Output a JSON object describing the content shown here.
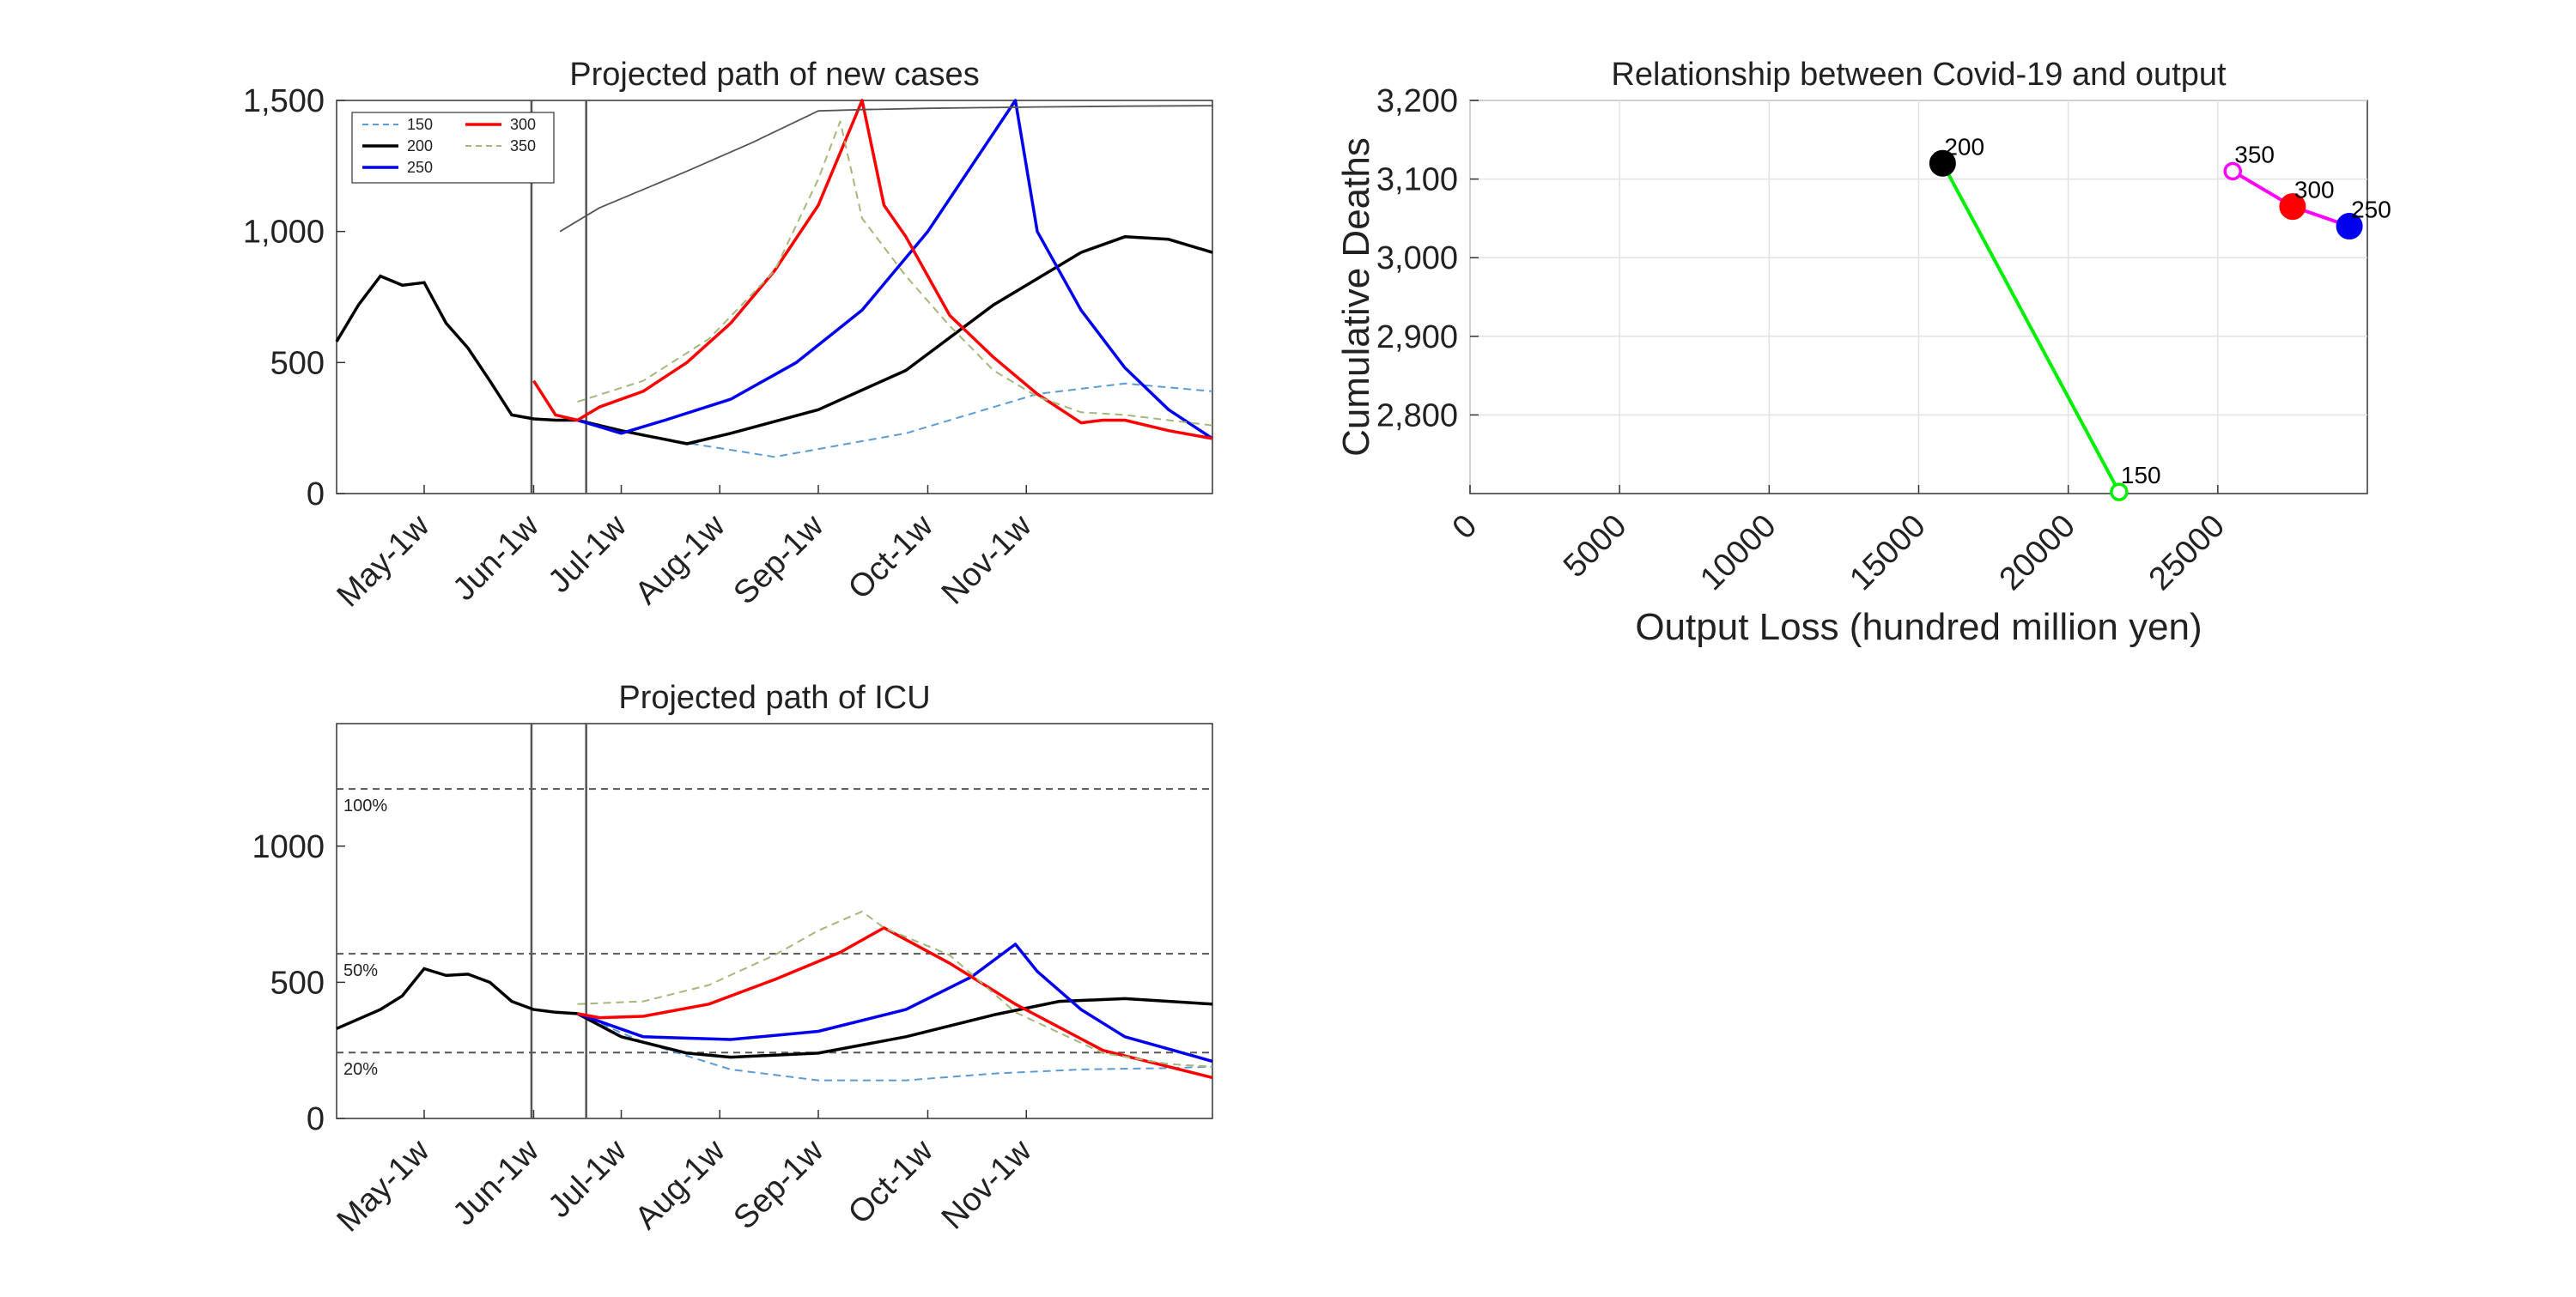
{
  "colors": {
    "s150": "#5b9bd5",
    "s200": "#000000",
    "s250": "#0000ee",
    "s300": "#ff0000",
    "s350": "#a3b87a",
    "green": "#00ee00",
    "magenta": "#ff00ff",
    "grey": "#555555"
  },
  "chart_data": [
    {
      "type": "line",
      "title": "Projected path of new cases",
      "ylim": [
        0,
        1500
      ],
      "yticks": [
        "0",
        "500",
        "1,000",
        "1,500"
      ],
      "ytick_values": [
        0,
        500,
        1000,
        1500
      ],
      "xtick_labels": [
        "May-1w",
        "Jun-1w",
        "Jul-1w",
        "Aug-1w",
        "Sep-1w",
        "Oct-1w",
        "Nov-1w"
      ],
      "xtick_weeks": [
        4,
        9,
        13,
        17.5,
        22,
        27,
        31.5
      ],
      "xlim": [
        0,
        40
      ],
      "vlines": [
        8.9,
        11.4
      ],
      "legend": [
        "150",
        "300",
        "200",
        "350",
        "250"
      ],
      "legend_position": "top-left",
      "history": {
        "x": [
          0,
          1,
          2,
          3,
          4,
          5,
          6,
          7,
          8,
          9,
          10,
          11
        ],
        "y": [
          580,
          720,
          830,
          795,
          805,
          650,
          555,
          430,
          300,
          285,
          280,
          280
        ]
      },
      "series": [
        {
          "name": "150",
          "style": "dashed",
          "x": [
            11,
            14,
            20,
            26,
            32,
            36,
            40
          ],
          "y": [
            280,
            220,
            140,
            230,
            380,
            420,
            390
          ]
        },
        {
          "name": "200",
          "style": "solid",
          "x": [
            11,
            13,
            16,
            18,
            22,
            26,
            30,
            34,
            36,
            38,
            40
          ],
          "y": [
            280,
            240,
            190,
            230,
            320,
            470,
            720,
            920,
            980,
            970,
            920
          ]
        },
        {
          "name": "250",
          "style": "solid",
          "x": [
            11,
            13,
            15,
            18,
            21,
            24,
            27,
            31,
            32,
            34,
            36,
            38,
            40
          ],
          "y": [
            280,
            230,
            280,
            360,
            500,
            700,
            1000,
            1500,
            1000,
            700,
            480,
            320,
            210
          ]
        },
        {
          "name": "300",
          "style": "solid",
          "x": [
            9,
            10,
            11,
            12,
            14,
            16,
            18,
            20,
            22,
            24,
            25,
            26,
            28,
            30,
            32,
            34,
            35,
            36,
            38,
            40
          ],
          "y": [
            430,
            300,
            280,
            330,
            390,
            500,
            650,
            850,
            1100,
            1500,
            1100,
            980,
            680,
            520,
            380,
            270,
            280,
            280,
            240,
            210
          ]
        },
        {
          "name": "350",
          "style": "dashed",
          "x": [
            11,
            14,
            17,
            20,
            22,
            23,
            24,
            26,
            28,
            30,
            32,
            34,
            36,
            38,
            40
          ],
          "y": [
            350,
            430,
            590,
            850,
            1200,
            1420,
            1050,
            830,
            640,
            470,
            370,
            310,
            300,
            280,
            260
          ]
        },
        {
          "name": "",
          "style": "thin",
          "x": [
            10.2,
            12,
            14,
            16,
            19,
            22,
            24,
            27,
            32,
            36,
            40
          ],
          "y": [
            1000,
            1090,
            1160,
            1230,
            1340,
            1460,
            1465,
            1470,
            1475,
            1478,
            1480
          ]
        }
      ]
    },
    {
      "type": "scatter",
      "title": "Relationship between Covid-19 and output",
      "xlabel": "Output Loss (hundred million yen)",
      "ylabel": "Cumulative Deaths",
      "xlim": [
        0,
        30000
      ],
      "ylim": [
        2700,
        3200
      ],
      "xticks": [
        "0",
        "5000",
        "10000",
        "15000",
        "20000",
        "25000"
      ],
      "xtick_values": [
        0,
        5000,
        10000,
        15000,
        20000,
        25000
      ],
      "yticks": [
        "2,800",
        "2,900",
        "3,000",
        "3,100",
        "3,200"
      ],
      "ytick_values": [
        2800,
        2900,
        3000,
        3100,
        3200
      ],
      "grid": true,
      "points": [
        {
          "label": "200",
          "x": 15800,
          "y": 3120,
          "color": "#000000",
          "filled": true
        },
        {
          "label": "150",
          "x": 21700,
          "y": 2702,
          "color": "#00ee00",
          "filled": false
        },
        {
          "label": "350",
          "x": 25500,
          "y": 3110,
          "color": "#ff00ff",
          "filled": false
        },
        {
          "label": "300",
          "x": 27500,
          "y": 3065,
          "color": "#ff0000",
          "filled": true
        },
        {
          "label": "250",
          "x": 29400,
          "y": 3040,
          "color": "#0000ee",
          "filled": true
        }
      ],
      "segments": [
        {
          "from": "200",
          "to": "150",
          "color": "#00ee00"
        },
        {
          "from": "350",
          "to": "300",
          "color": "#ff00ff"
        },
        {
          "from": "300",
          "to": "250",
          "color": "#ff00ff"
        }
      ]
    },
    {
      "type": "line",
      "title": "Projected path of ICU",
      "ylim": [
        0,
        1450
      ],
      "yticks": [
        "0",
        "500",
        "1000"
      ],
      "ytick_values": [
        0,
        500,
        1000
      ],
      "xtick_labels": [
        "May-1w",
        "Jun-1w",
        "Jul-1w",
        "Aug-1w",
        "Sep-1w",
        "Oct-1w",
        "Nov-1w"
      ],
      "xtick_weeks": [
        4,
        9,
        13,
        17.5,
        22,
        27,
        31.5
      ],
      "xlim": [
        0,
        40
      ],
      "vlines": [
        8.9,
        11.4
      ],
      "hlines": [
        {
          "y": 1210,
          "label": "100%"
        },
        {
          "y": 605,
          "label": "50%"
        },
        {
          "y": 242,
          "label": "20%"
        }
      ],
      "history": {
        "x": [
          0,
          2,
          3,
          4,
          5,
          6,
          7,
          8,
          9,
          10,
          11
        ],
        "y": [
          330,
          400,
          450,
          550,
          525,
          530,
          500,
          430,
          400,
          390,
          385
        ]
      },
      "series": [
        {
          "name": "150",
          "style": "dashed",
          "x": [
            11,
            14,
            18,
            22,
            26,
            30,
            34,
            38,
            40
          ],
          "y": [
            385,
            280,
            180,
            140,
            140,
            165,
            180,
            185,
            190
          ]
        },
        {
          "name": "200",
          "style": "solid",
          "x": [
            11,
            13,
            16,
            18,
            22,
            26,
            30,
            33,
            36,
            40
          ],
          "y": [
            385,
            300,
            240,
            225,
            240,
            300,
            380,
            430,
            440,
            420
          ]
        },
        {
          "name": "250",
          "style": "solid",
          "x": [
            11,
            14,
            18,
            22,
            26,
            29,
            31,
            32,
            34,
            36,
            40
          ],
          "y": [
            385,
            300,
            290,
            320,
            400,
            520,
            640,
            540,
            400,
            300,
            210
          ]
        },
        {
          "name": "300",
          "style": "solid",
          "x": [
            11,
            12,
            14,
            17,
            20,
            23,
            25,
            28,
            31,
            35,
            38,
            40
          ],
          "y": [
            385,
            370,
            375,
            420,
            510,
            610,
            700,
            570,
            420,
            250,
            190,
            150
          ]
        },
        {
          "name": "350",
          "style": "dashed",
          "x": [
            11,
            14,
            17,
            20,
            22,
            24,
            25,
            28,
            31,
            35,
            38,
            40
          ],
          "y": [
            420,
            430,
            490,
            600,
            690,
            760,
            700,
            600,
            390,
            240,
            200,
            190
          ]
        }
      ]
    }
  ]
}
